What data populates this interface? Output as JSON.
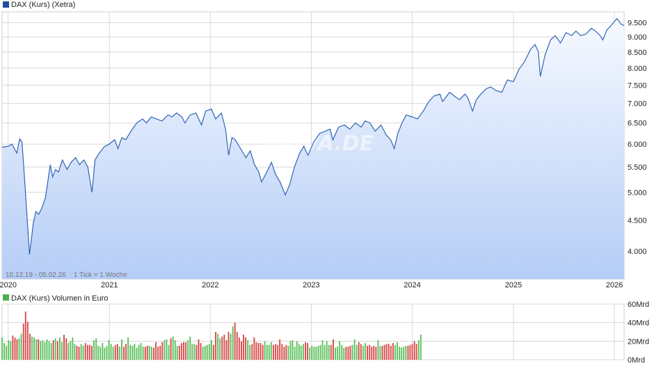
{
  "price_panel": {
    "legend_label": "DAX (Kurs) (Xetra)",
    "legend_color": "#1f4e9c",
    "footer_text": "10.12.19 - 05.02.26    1 Tick = 1 Woche",
    "watermark": "ARIVA.DE"
  },
  "volume_panel": {
    "legend_label": "DAX (Kurs) Volumen in Euro",
    "legend_color": "#4caf50"
  },
  "colors": {
    "line": "#2f64b5",
    "area_top": "#f6f9ff",
    "area_bottom": "#b5cdf6",
    "grid": "#d8d8d8",
    "vol_up": "#5cc05c",
    "vol_down": "#d94b4b"
  },
  "chart_data": [
    {
      "type": "area",
      "y_scale": "log",
      "ylim": [
        3600,
        9900
      ],
      "xlim": [
        "2019-12-10",
        "2026-02-05"
      ],
      "x_tick_labels": [
        {
          "x": "2020-01-01",
          "label": "2020"
        },
        {
          "x": "2021-01-01",
          "label": "2021"
        },
        {
          "x": "2022-01-01",
          "label": "2022"
        },
        {
          "x": "2023-01-01",
          "label": "2023"
        },
        {
          "x": "2024-01-01",
          "label": "2024"
        },
        {
          "x": "2025-01-01",
          "label": "2025"
        },
        {
          "x": "2026-01-01",
          "label": "2026"
        }
      ],
      "y_tick_labels": [
        {
          "y": 4000,
          "label": "4.000"
        },
        {
          "y": 4500,
          "label": "4.500"
        },
        {
          "y": 5000,
          "label": "5.000"
        },
        {
          "y": 5500,
          "label": "5.500"
        },
        {
          "y": 6000,
          "label": "6.000"
        },
        {
          "y": 6500,
          "label": "6.500"
        },
        {
          "y": 7000,
          "label": "7.000"
        },
        {
          "y": 7500,
          "label": "7.500"
        },
        {
          "y": 8000,
          "label": "8.000"
        },
        {
          "y": 8500,
          "label": "8.500"
        },
        {
          "y": 9000,
          "label": "9.000"
        },
        {
          "y": 9500,
          "label": "9.500"
        }
      ],
      "grid": true,
      "series": [
        {
          "name": "DAX (Kurs) (Xetra)",
          "points": [
            [
              "2019-12-10",
              5930
            ],
            [
              "2020-01-01",
              5950
            ],
            [
              "2020-01-15",
              6000
            ],
            [
              "2020-02-01",
              5800
            ],
            [
              "2020-02-12",
              6120
            ],
            [
              "2020-02-20",
              6050
            ],
            [
              "2020-03-01",
              5200
            ],
            [
              "2020-03-10",
              4500
            ],
            [
              "2020-03-18",
              3950
            ],
            [
              "2020-04-01",
              4450
            ],
            [
              "2020-04-10",
              4650
            ],
            [
              "2020-04-20",
              4600
            ],
            [
              "2020-05-01",
              4700
            ],
            [
              "2020-05-15",
              4900
            ],
            [
              "2020-06-01",
              5550
            ],
            [
              "2020-06-10",
              5300
            ],
            [
              "2020-06-20",
              5450
            ],
            [
              "2020-07-01",
              5400
            ],
            [
              "2020-07-15",
              5650
            ],
            [
              "2020-08-01",
              5450
            ],
            [
              "2020-08-15",
              5600
            ],
            [
              "2020-09-01",
              5700
            ],
            [
              "2020-09-15",
              5550
            ],
            [
              "2020-10-01",
              5650
            ],
            [
              "2020-10-15",
              5500
            ],
            [
              "2020-10-30",
              5000
            ],
            [
              "2020-11-10",
              5650
            ],
            [
              "2020-11-25",
              5800
            ],
            [
              "2020-12-15",
              5950
            ],
            [
              "2021-01-01",
              6000
            ],
            [
              "2021-01-20",
              6100
            ],
            [
              "2021-02-01",
              5900
            ],
            [
              "2021-02-15",
              6150
            ],
            [
              "2021-03-01",
              6100
            ],
            [
              "2021-03-20",
              6300
            ],
            [
              "2021-04-10",
              6500
            ],
            [
              "2021-05-01",
              6600
            ],
            [
              "2021-05-15",
              6500
            ],
            [
              "2021-06-01",
              6650
            ],
            [
              "2021-06-20",
              6600
            ],
            [
              "2021-07-10",
              6550
            ],
            [
              "2021-08-01",
              6700
            ],
            [
              "2021-08-15",
              6650
            ],
            [
              "2021-09-01",
              6750
            ],
            [
              "2021-09-20",
              6650
            ],
            [
              "2021-10-01",
              6500
            ],
            [
              "2021-10-20",
              6700
            ],
            [
              "2021-11-10",
              6750
            ],
            [
              "2021-11-30",
              6450
            ],
            [
              "2021-12-15",
              6800
            ],
            [
              "2022-01-05",
              6850
            ],
            [
              "2022-01-20",
              6600
            ],
            [
              "2022-02-10",
              6750
            ],
            [
              "2022-02-25",
              6350
            ],
            [
              "2022-03-08",
              5750
            ],
            [
              "2022-03-20",
              6150
            ],
            [
              "2022-04-01",
              6100
            ],
            [
              "2022-04-20",
              5900
            ],
            [
              "2022-05-10",
              5700
            ],
            [
              "2022-05-25",
              5850
            ],
            [
              "2022-06-10",
              5550
            ],
            [
              "2022-06-25",
              5400
            ],
            [
              "2022-07-05",
              5200
            ],
            [
              "2022-07-20",
              5350
            ],
            [
              "2022-08-10",
              5600
            ],
            [
              "2022-08-25",
              5350
            ],
            [
              "2022-09-10",
              5200
            ],
            [
              "2022-09-29",
              4950
            ],
            [
              "2022-10-15",
              5150
            ],
            [
              "2022-11-01",
              5500
            ],
            [
              "2022-11-20",
              5800
            ],
            [
              "2022-12-05",
              5950
            ],
            [
              "2022-12-20",
              5750
            ],
            [
              "2023-01-10",
              6050
            ],
            [
              "2023-02-01",
              6250
            ],
            [
              "2023-02-20",
              6300
            ],
            [
              "2023-03-10",
              6350
            ],
            [
              "2023-03-20",
              6100
            ],
            [
              "2023-04-10",
              6400
            ],
            [
              "2023-05-01",
              6450
            ],
            [
              "2023-05-20",
              6350
            ],
            [
              "2023-06-10",
              6500
            ],
            [
              "2023-06-30",
              6400
            ],
            [
              "2023-07-15",
              6550
            ],
            [
              "2023-08-01",
              6500
            ],
            [
              "2023-08-20",
              6300
            ],
            [
              "2023-09-10",
              6450
            ],
            [
              "2023-09-30",
              6200
            ],
            [
              "2023-10-15",
              6100
            ],
            [
              "2023-10-28",
              5900
            ],
            [
              "2023-11-10",
              6250
            ],
            [
              "2023-11-25",
              6500
            ],
            [
              "2023-12-10",
              6700
            ],
            [
              "2024-01-01",
              6650
            ],
            [
              "2024-01-20",
              6600
            ],
            [
              "2024-02-10",
              6800
            ],
            [
              "2024-03-01",
              7050
            ],
            [
              "2024-03-20",
              7200
            ],
            [
              "2024-04-10",
              7250
            ],
            [
              "2024-04-20",
              7050
            ],
            [
              "2024-05-15",
              7300
            ],
            [
              "2024-06-01",
              7200
            ],
            [
              "2024-06-20",
              7100
            ],
            [
              "2024-07-10",
              7250
            ],
            [
              "2024-07-20",
              7150
            ],
            [
              "2024-08-06",
              6800
            ],
            [
              "2024-08-20",
              7100
            ],
            [
              "2024-09-05",
              7250
            ],
            [
              "2024-09-25",
              7400
            ],
            [
              "2024-10-10",
              7450
            ],
            [
              "2024-10-30",
              7350
            ],
            [
              "2024-11-20",
              7300
            ],
            [
              "2024-12-10",
              7650
            ],
            [
              "2025-01-01",
              7600
            ],
            [
              "2025-01-20",
              7950
            ],
            [
              "2025-02-10",
              8200
            ],
            [
              "2025-03-05",
              8600
            ],
            [
              "2025-03-20",
              8750
            ],
            [
              "2025-04-01",
              8500
            ],
            [
              "2025-04-08",
              7750
            ],
            [
              "2025-04-25",
              8400
            ],
            [
              "2025-05-15",
              8900
            ],
            [
              "2025-06-01",
              9050
            ],
            [
              "2025-06-20",
              8800
            ],
            [
              "2025-07-10",
              9150
            ],
            [
              "2025-07-30",
              9050
            ],
            [
              "2025-08-15",
              9200
            ],
            [
              "2025-09-01",
              9050
            ],
            [
              "2025-09-20",
              9100
            ],
            [
              "2025-10-10",
              9300
            ],
            [
              "2025-10-25",
              9200
            ],
            [
              "2025-11-10",
              9050
            ],
            [
              "2025-11-20",
              8900
            ],
            [
              "2025-12-05",
              9250
            ],
            [
              "2025-12-20",
              9400
            ],
            [
              "2026-01-10",
              9650
            ],
            [
              "2026-01-25",
              9450
            ],
            [
              "2026-02-05",
              9400
            ]
          ]
        }
      ]
    },
    {
      "type": "bar",
      "ylim": [
        0,
        60
      ],
      "y_unit": "Mrd",
      "y_tick_labels": [
        {
          "y": 60,
          "label": "60Mrd"
        },
        {
          "y": 40,
          "label": "40Mrd"
        },
        {
          "y": 20,
          "label": "20Mrd"
        },
        {
          "y": 0,
          "label": "0Mrd"
        }
      ],
      "series": [
        {
          "name": "DAX (Kurs) Volumen in Euro",
          "x_start": "2019-12-10",
          "x_end": "2024-02-01",
          "up_color_rule": "green when close higher than previous week, red otherwise",
          "values": [
            24,
            18,
            15,
            21,
            20,
            26,
            24,
            22,
            23,
            28,
            39,
            52,
            41,
            28,
            25,
            24,
            22,
            22,
            20,
            21,
            19,
            22,
            20,
            18,
            21,
            23,
            20,
            24,
            19,
            27,
            23,
            18,
            20,
            24,
            17,
            15,
            14,
            17,
            15,
            18,
            16,
            16,
            15,
            21,
            23,
            15,
            14,
            18,
            13,
            15,
            21,
            17,
            14,
            16,
            17,
            14,
            22,
            14,
            17,
            24,
            16,
            15,
            17,
            13,
            16,
            18,
            14,
            14,
            15,
            15,
            14,
            13,
            19,
            14,
            15,
            19,
            21,
            22,
            16,
            23,
            25,
            21,
            15,
            15,
            18,
            19,
            19,
            21,
            25,
            17,
            17,
            16,
            22,
            18,
            14,
            15,
            16,
            17,
            21,
            16,
            30,
            28,
            23,
            25,
            27,
            21,
            30,
            28,
            36,
            40,
            30,
            24,
            20,
            27,
            24,
            21,
            16,
            17,
            24,
            19,
            18,
            18,
            16,
            20,
            16,
            16,
            19,
            16,
            17,
            16,
            22,
            17,
            14,
            16,
            15,
            20,
            21,
            14,
            20,
            17,
            15,
            17,
            19,
            18,
            13,
            15,
            14,
            14,
            15,
            16,
            21,
            16,
            20,
            16,
            16,
            22,
            13,
            14,
            20,
            16,
            13,
            14,
            14,
            15,
            16,
            22,
            16,
            19,
            17,
            15,
            18,
            15,
            16,
            14,
            15,
            14,
            21,
            15,
            15,
            16,
            17,
            17,
            15,
            18,
            16,
            19,
            14,
            13,
            14,
            15,
            15,
            16,
            17,
            20,
            17,
            21,
            27
          ]
        }
      ]
    }
  ]
}
